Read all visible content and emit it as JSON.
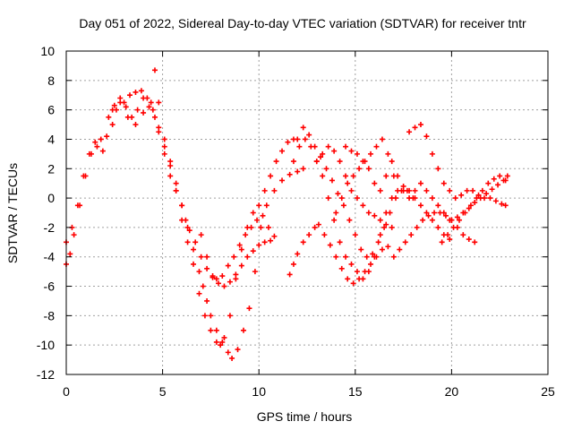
{
  "chart_data": {
    "type": "scatter",
    "title": "Day 051 of 2022, Sidereal Day-to-day VTEC variation (SDTVAR) for receiver tntr",
    "xlabel": "GPS time / hours",
    "ylabel": "SDTVAR / TECUs",
    "xlim": [
      0,
      25
    ],
    "ylim": [
      -12,
      10
    ],
    "xticks": [
      0,
      5,
      10,
      15,
      20,
      25
    ],
    "yticks": [
      -12,
      -10,
      -8,
      -6,
      -4,
      -2,
      0,
      2,
      4,
      6,
      8,
      10
    ],
    "grid": true,
    "marker": "plus",
    "series_color": "#ff0000",
    "series": [
      {
        "x": [
          0.0,
          0.3,
          0.6,
          0.9,
          1.2,
          1.5,
          1.8,
          2.1,
          2.4,
          2.6
        ],
        "y": [
          -3.0,
          -2.0,
          -0.5,
          1.5,
          3.0,
          3.8,
          4.0,
          4.2,
          5.0,
          6.0
        ]
      },
      {
        "x": [
          0.0,
          0.2,
          0.4,
          0.7,
          1.0,
          1.3,
          1.6,
          1.9
        ],
        "y": [
          -4.5,
          -3.8,
          -2.5,
          -0.5,
          1.5,
          3.0,
          3.5,
          3.2
        ]
      },
      {
        "x": [
          2.2,
          2.5,
          2.8,
          3.1,
          3.4,
          3.7,
          4.0,
          4.3,
          4.6,
          4.8,
          5.1,
          5.4,
          5.7,
          6.0,
          6.2,
          6.4,
          6.7,
          7.0,
          7.3,
          7.6,
          7.8,
          8.1,
          8.4,
          8.7,
          9.0,
          9.3,
          9.6,
          9.9,
          10.2,
          10.5,
          10.8
        ],
        "y": [
          5.5,
          6.3,
          6.8,
          6.2,
          5.5,
          6.0,
          6.8,
          6.2,
          5.5,
          4.5,
          3.0,
          1.5,
          0.5,
          -0.5,
          -1.5,
          -2.2,
          -3.0,
          -4.0,
          -4.8,
          -5.4,
          -5.5,
          -5.3,
          -4.6,
          -4.0,
          -3.2,
          -2.5,
          -2.0,
          -1.5,
          -1.2,
          -2.0,
          -2.6
        ]
      },
      {
        "x": [
          3.0,
          3.3,
          3.6,
          3.9,
          4.2,
          4.5,
          4.8,
          5.1,
          5.4,
          5.7,
          6.0,
          6.3,
          6.6,
          6.9,
          7.1,
          7.3,
          7.5,
          7.8,
          8.1,
          8.4,
          8.6,
          8.9,
          9.2,
          9.5,
          9.8,
          10.1,
          10.4,
          10.8,
          11.2,
          11.6,
          12.0,
          12.3
        ],
        "y": [
          6.5,
          7.0,
          7.2,
          7.3,
          6.8,
          6.0,
          4.8,
          3.5,
          2.2,
          1.0,
          -0.5,
          -2.0,
          -3.5,
          -5.0,
          -6.0,
          -7.0,
          -8.0,
          -9.0,
          -9.8,
          -10.5,
          -10.9,
          -10.3,
          -9.0,
          -7.5,
          -5.0,
          -2.0,
          -0.5,
          0.5,
          1.2,
          1.6,
          1.8,
          2.0
        ]
      },
      {
        "x": [
          2.4,
          2.8,
          3.2,
          3.6,
          4.0,
          4.4,
          4.6,
          4.8,
          5.1,
          5.4,
          5.7,
          6.0,
          6.3,
          6.6,
          6.9,
          7.2,
          7.5,
          7.8,
          8.0,
          8.2,
          8.5,
          8.8,
          9.1,
          9.4,
          9.7,
          10.0,
          10.3,
          10.6,
          10.9,
          11.2,
          11.5,
          11.8
        ],
        "y": [
          6.0,
          6.5,
          5.5,
          5.0,
          5.8,
          6.5,
          8.7,
          6.5,
          4.0,
          2.5,
          0.5,
          -1.5,
          -3.0,
          -4.5,
          -6.5,
          -8.0,
          -9.0,
          -9.8,
          -10.0,
          -9.5,
          -8.0,
          -5.5,
          -3.5,
          -2.0,
          -1.0,
          -0.5,
          0.5,
          1.5,
          2.5,
          3.2,
          3.8,
          4.0
        ]
      },
      {
        "x": [
          7.0,
          7.3,
          7.6,
          7.9,
          8.2,
          8.5,
          8.8,
          9.1,
          9.4,
          9.7,
          10.0,
          10.3,
          10.6
        ],
        "y": [
          -2.5,
          -4.0,
          -5.3,
          -5.8,
          -6.0,
          -5.7,
          -5.2,
          -4.6,
          -4.0,
          -3.6,
          -3.2,
          -3.0,
          -2.9
        ]
      },
      {
        "x": [
          11.6,
          11.8,
          12.0,
          12.3,
          12.6,
          12.9,
          13.1,
          13.4,
          13.7,
          14.0,
          14.3,
          14.6,
          14.9,
          15.2,
          15.5,
          15.8,
          16.1,
          16.4,
          16.7
        ],
        "y": [
          -5.2,
          -4.5,
          -3.8,
          -3.0,
          -2.5,
          -2.0,
          -1.8,
          -2.5,
          -3.2,
          -4.0,
          -4.8,
          -5.5,
          -5.8,
          -5.5,
          -5.0,
          -4.5,
          -4.0,
          -3.5,
          -3.3
        ]
      },
      {
        "x": [
          11.8,
          12.1,
          12.4,
          12.7,
          13.0,
          13.3,
          13.6,
          13.9,
          14.2,
          14.5,
          14.8,
          15.1,
          15.4,
          15.7,
          16.0,
          16.3,
          16.6,
          16.9,
          17.2,
          17.5,
          17.8,
          18.1,
          18.4,
          18.7,
          19.0,
          19.3,
          19.6,
          19.9
        ],
        "y": [
          2.5,
          3.5,
          4.0,
          3.5,
          2.5,
          1.5,
          0.0,
          -1.5,
          -3.0,
          -4.0,
          -4.5,
          -5.0,
          -5.5,
          -5.0,
          -4.0,
          -2.5,
          -1.0,
          0.0,
          0.5,
          0.8,
          0.5,
          0.0,
          -0.5,
          -1.0,
          -1.5,
          -2.0,
          -2.5,
          -2.8
        ]
      },
      {
        "x": [
          12.0,
          12.3,
          12.6,
          12.9,
          13.2,
          13.5,
          13.8,
          14.1,
          14.4,
          14.7,
          15.0,
          15.3,
          15.6,
          15.9,
          16.2,
          16.5,
          16.8,
          17.1,
          17.4,
          17.7,
          18.0
        ],
        "y": [
          4.0,
          4.8,
          4.3,
          3.5,
          2.8,
          2.0,
          1.2,
          0.3,
          -0.5,
          -1.5,
          -2.5,
          -3.5,
          -4.0,
          -3.8,
          -3.0,
          -2.0,
          -1.0,
          0.0,
          0.5,
          0.5,
          0.0
        ]
      },
      {
        "x": [
          13.0,
          13.3,
          13.6,
          13.9,
          14.2,
          14.5,
          14.8,
          15.1,
          15.4,
          15.7,
          16.0,
          16.3,
          16.6,
          16.9
        ],
        "y": [
          2.5,
          3.0,
          3.5,
          3.2,
          2.5,
          1.5,
          0.5,
          0.0,
          -0.5,
          -1.0,
          -1.2,
          -1.5,
          -1.8,
          -2.0
        ]
      },
      {
        "x": [
          14.0,
          14.3,
          14.6,
          14.9,
          15.2,
          15.5,
          15.8,
          16.1,
          16.4,
          16.7,
          17.0
        ],
        "y": [
          -1.0,
          0.0,
          1.0,
          1.5,
          2.0,
          2.5,
          3.0,
          3.5,
          4.0,
          3.0,
          1.5
        ]
      },
      {
        "x": [
          14.5,
          14.8,
          15.1,
          15.4,
          15.7,
          16.0,
          16.3,
          16.6,
          16.9,
          17.2,
          17.5,
          17.8,
          18.1,
          18.4,
          18.7,
          19.0,
          19.3,
          19.6,
          19.9
        ],
        "y": [
          3.5,
          3.2,
          3.0,
          2.5,
          2.0,
          1.0,
          0.5,
          1.5,
          2.5,
          1.5,
          0.5,
          0.0,
          0.5,
          1.0,
          0.5,
          0.0,
          -0.5,
          -1.0,
          -1.5
        ]
      },
      {
        "x": [
          17.0,
          17.3,
          17.6,
          17.9,
          18.2,
          18.5,
          18.8,
          19.1,
          19.4,
          19.7,
          20.0,
          20.3,
          20.6,
          20.9,
          21.2
        ],
        "y": [
          -4.0,
          -3.5,
          -3.0,
          -2.5,
          -2.0,
          -1.5,
          -1.2,
          -1.0,
          -1.0,
          -1.2,
          -1.5,
          -2.0,
          -2.5,
          -2.8,
          -3.0
        ]
      },
      {
        "x": [
          17.8,
          18.1,
          18.4,
          18.7,
          19.0,
          19.3,
          19.6,
          19.9,
          20.2,
          20.5,
          20.8,
          21.1,
          21.4,
          21.7,
          22.0,
          22.3,
          22.6,
          22.8
        ],
        "y": [
          4.5,
          4.8,
          5.0,
          4.2,
          3.0,
          2.0,
          1.0,
          0.5,
          0.0,
          0.2,
          0.5,
          0.5,
          0.2,
          0.0,
          0.0,
          -0.2,
          -0.4,
          -0.5
        ]
      },
      {
        "x": [
          19.5,
          19.8,
          20.1,
          20.4,
          20.7,
          21.0,
          21.3,
          21.6,
          21.9,
          22.2,
          22.5,
          22.8
        ],
        "y": [
          -3.0,
          -2.5,
          -2.0,
          -1.5,
          -1.0,
          -0.5,
          0.0,
          0.5,
          1.0,
          1.3,
          1.5,
          1.2
        ]
      },
      {
        "x": [
          20.0,
          20.3,
          20.6,
          20.9,
          21.2,
          21.5,
          21.8,
          22.1,
          22.4,
          22.7,
          22.9
        ],
        "y": [
          -1.5,
          -1.3,
          -1.0,
          -0.7,
          -0.3,
          0.0,
          0.3,
          0.6,
          0.9,
          1.2,
          1.5
        ]
      }
    ]
  }
}
